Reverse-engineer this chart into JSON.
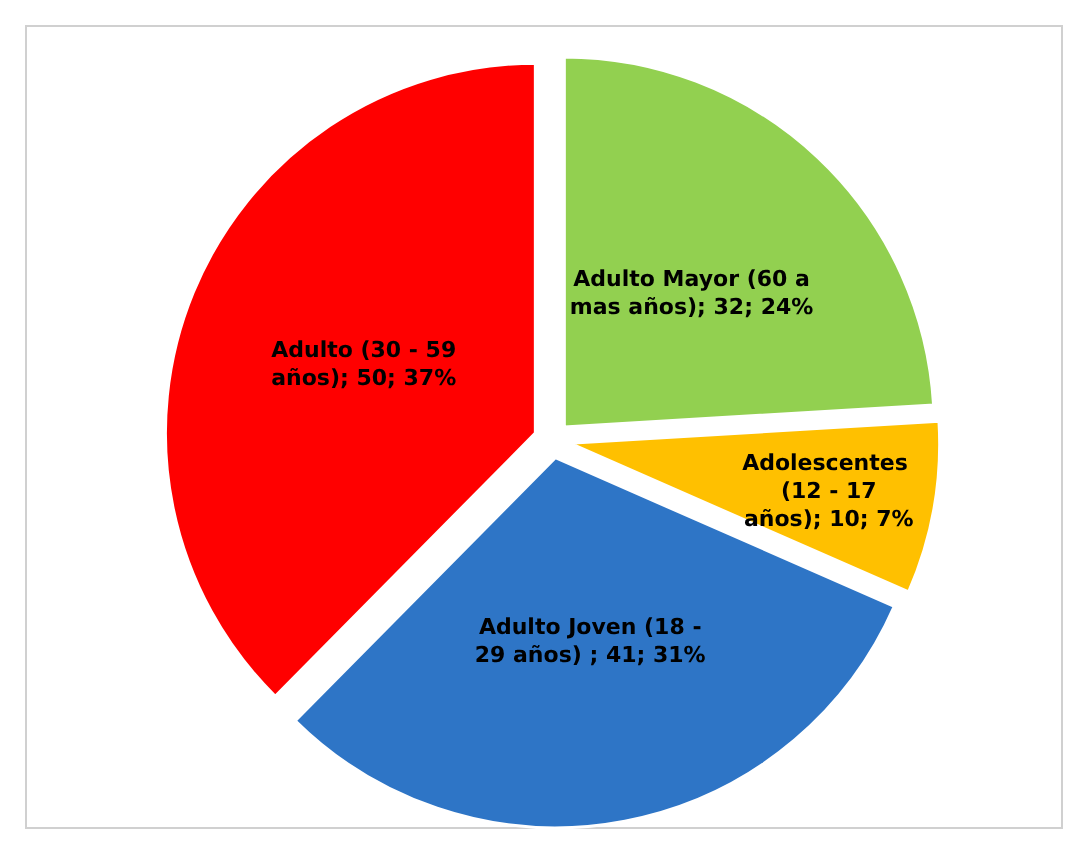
{
  "chart_data": {
    "type": "pie",
    "categories": [
      "Adulto Mayor (60 a mas años)",
      "Adolescentes  (12 - 17 años)",
      "Adulto Joven (18 - 29 años)",
      "Adulto (30 - 59 años)"
    ],
    "values": [
      32,
      10,
      41,
      50
    ],
    "colors": [
      "#92d050",
      "#ffc000",
      "#2e75c6",
      "#ff0000"
    ],
    "value_labels": [
      "; 32; 24%",
      "; 10; 7%",
      " ; 41; 31%",
      "; 50; 37%"
    ]
  }
}
